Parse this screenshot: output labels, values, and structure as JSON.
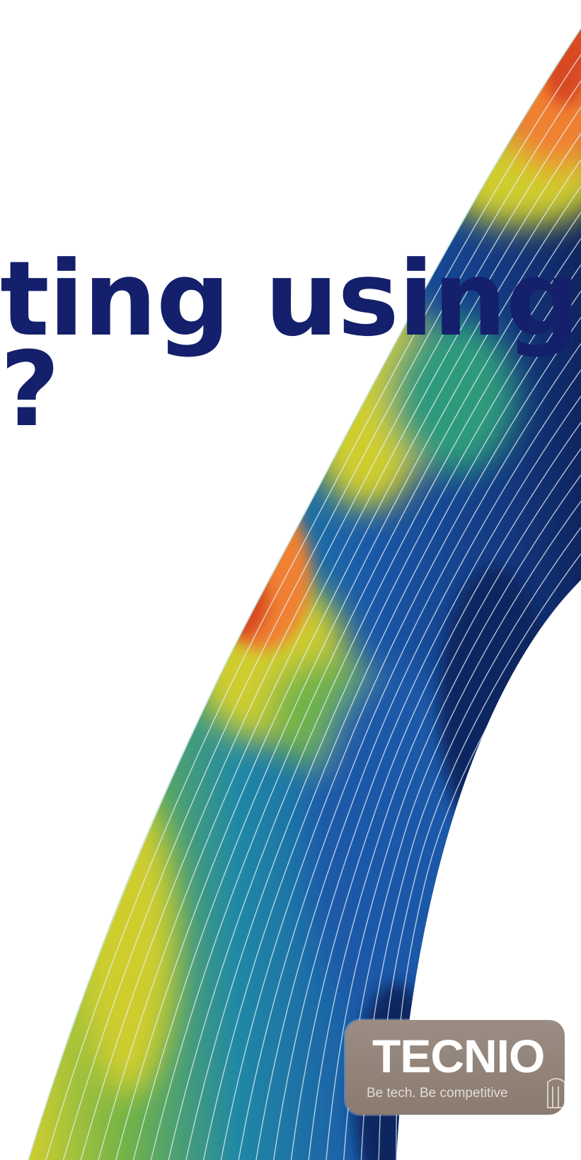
{
  "headline": {
    "line1": "ting using",
    "line2": "?"
  },
  "badge": {
    "name": "TECNIO",
    "tagline": "Be tech. Be competitive"
  },
  "colors": {
    "headline": "#14206b",
    "badge_bg": "#8f8177",
    "field_dark_blue": "#0f2560",
    "field_blue": "#1d5fae",
    "field_green": "#2f9a7c",
    "field_yellow": "#cfcd2f",
    "field_orange": "#f08032",
    "field_red": "#d84a22"
  },
  "icons": {
    "background": "cfd-colormap-band-illustration",
    "badge_corner": "tecnio-emblem-icon"
  }
}
